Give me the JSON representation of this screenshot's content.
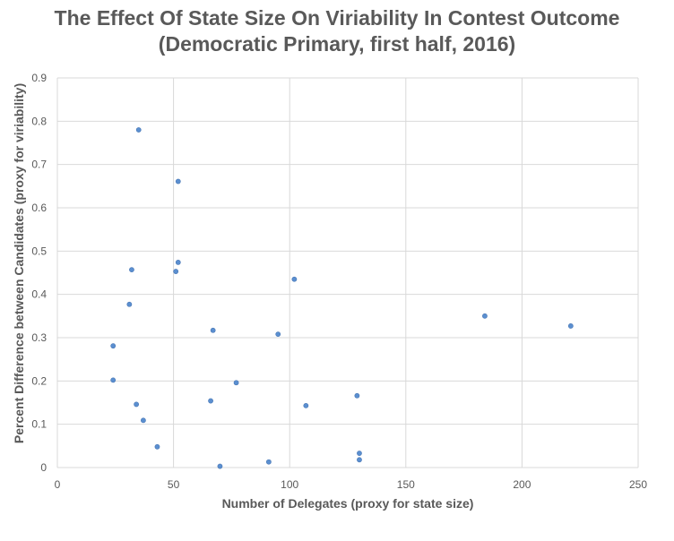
{
  "chart_data": {
    "type": "scatter",
    "title_line1": "The Effect Of State Size On Viriability In Contest Outcome",
    "title_line2": "(Democratic Primary, first half, 2016)",
    "xlabel": "Number of Delegates (proxy for state size)",
    "ylabel": "Percent Difference between Candidates (proxy for viriability)",
    "xlim": [
      0,
      250
    ],
    "ylim": [
      0,
      0.9
    ],
    "x_ticks": [
      "0",
      "50",
      "100",
      "150",
      "200",
      "250"
    ],
    "y_ticks": [
      "0",
      "0.1",
      "0.2",
      "0.3",
      "0.4",
      "0.5",
      "0.6",
      "0.7",
      "0.8",
      "0.9"
    ],
    "grid": true,
    "marker_color": "#5B8FD0",
    "points": [
      {
        "x": 35,
        "y": 0.78
      },
      {
        "x": 52,
        "y": 0.661
      },
      {
        "x": 32,
        "y": 0.457
      },
      {
        "x": 52,
        "y": 0.474
      },
      {
        "x": 51,
        "y": 0.453
      },
      {
        "x": 102,
        "y": 0.435
      },
      {
        "x": 31,
        "y": 0.377
      },
      {
        "x": 184,
        "y": 0.35
      },
      {
        "x": 221,
        "y": 0.327
      },
      {
        "x": 67,
        "y": 0.317
      },
      {
        "x": 95,
        "y": 0.308
      },
      {
        "x": 24,
        "y": 0.281
      },
      {
        "x": 24,
        "y": 0.202
      },
      {
        "x": 77,
        "y": 0.196
      },
      {
        "x": 129,
        "y": 0.166
      },
      {
        "x": 66,
        "y": 0.154
      },
      {
        "x": 34,
        "y": 0.146
      },
      {
        "x": 107,
        "y": 0.143
      },
      {
        "x": 37,
        "y": 0.109
      },
      {
        "x": 43,
        "y": 0.048
      },
      {
        "x": 130,
        "y": 0.033
      },
      {
        "x": 130,
        "y": 0.018
      },
      {
        "x": 91,
        "y": 0.013
      },
      {
        "x": 70,
        "y": 0.003
      }
    ]
  }
}
